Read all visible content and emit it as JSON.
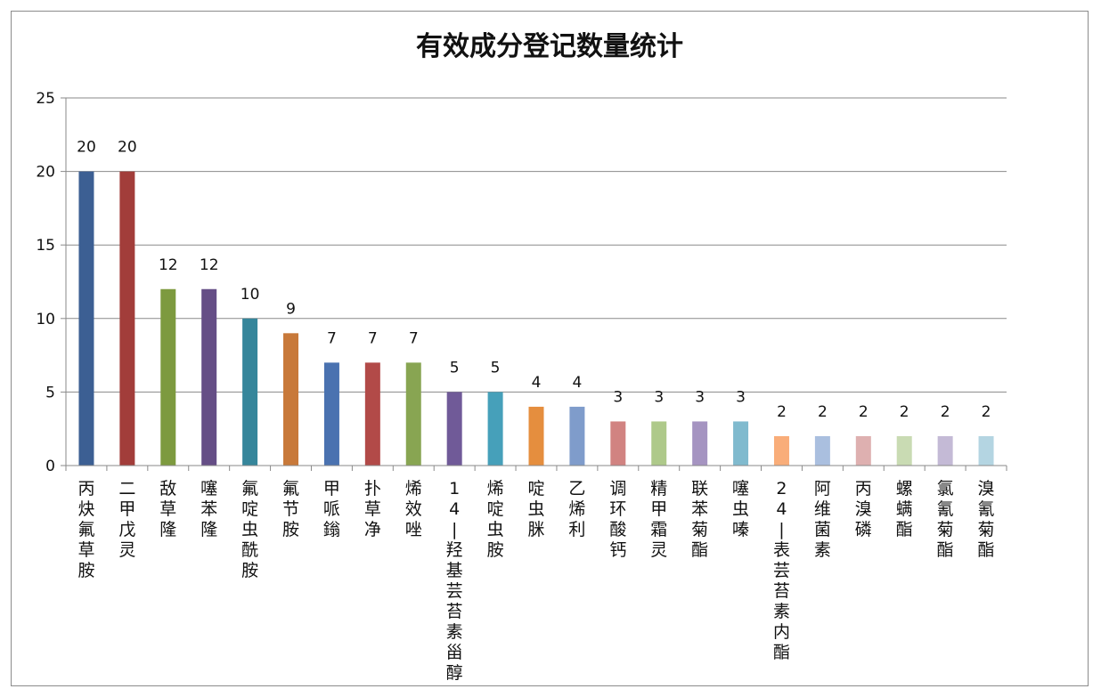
{
  "chart_data": {
    "type": "bar",
    "title": "有效成分登记数量统计",
    "xlabel": "",
    "ylabel": "",
    "ylim": [
      0,
      25
    ],
    "yticks": [
      0,
      5,
      10,
      15,
      20,
      25
    ],
    "grid": true,
    "legend": "none",
    "categories": [
      "丙炔氟草胺",
      "二甲戊灵",
      "敌草隆",
      "噻苯隆",
      "氟啶虫酰胺",
      "氟节胺",
      "甲哌鎓",
      "扑草净",
      "烯效唑",
      "14-羟基芸苔素甾醇",
      "烯啶虫胺",
      "啶虫脒",
      "乙烯利",
      "调环酸钙",
      "精甲霜灵",
      "联苯菊酯",
      "噻虫嗪",
      "24-表芸苔素内酯",
      "阿维菌素",
      "丙溴磷",
      "螺螨酯",
      "氯氰菊酯",
      "溴氰菊酯"
    ],
    "values": [
      20,
      20,
      12,
      12,
      10,
      9,
      7,
      7,
      7,
      5,
      5,
      4,
      4,
      3,
      3,
      3,
      3,
      2,
      2,
      2,
      2,
      2,
      2
    ],
    "colors": [
      "#3c5f93",
      "#a23d3a",
      "#7d9a3f",
      "#654e86",
      "#36869b",
      "#c8793a",
      "#4a72b0",
      "#b24a48",
      "#88a552",
      "#705a98",
      "#46a0ba",
      "#e58e3e",
      "#7f9ccb",
      "#d18381",
      "#aec98a",
      "#a594c1",
      "#80bace",
      "#f9ad79",
      "#aabfdf",
      "#deb0b0",
      "#c9dbb3",
      "#c4bad6",
      "#b4d5e2"
    ]
  }
}
